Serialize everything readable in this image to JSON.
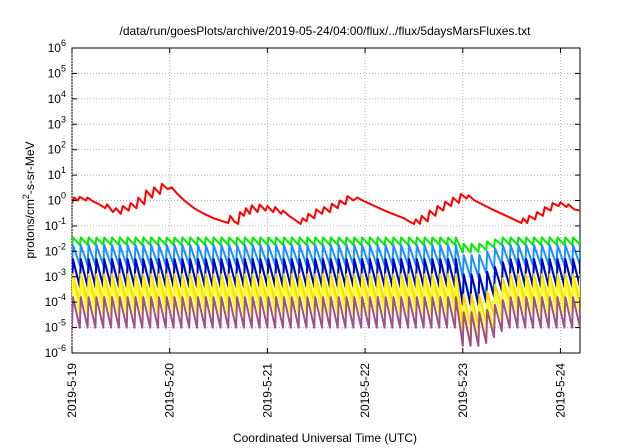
{
  "chart_data": {
    "type": "line",
    "title": "/data/run/goesPlots/archive/2019-05-24/04:00/flux/../flux/5daysMarsFluxes.txt",
    "xlabel": "Coordinated Universal Time (UTC)",
    "ylabel": {
      "base": "protons/cm",
      "sup": "2",
      "rest": "-s-sr-MeV"
    },
    "y_scale": "log",
    "ylim": [
      1e-06,
      1000000.0
    ],
    "y_ticks": [
      {
        "base": "10",
        "exp": "-6",
        "value": 1e-06
      },
      {
        "base": "10",
        "exp": "-5",
        "value": 1e-05
      },
      {
        "base": "10",
        "exp": "-4",
        "value": 0.0001
      },
      {
        "base": "10",
        "exp": "-3",
        "value": 0.001
      },
      {
        "base": "10",
        "exp": "-2",
        "value": 0.01
      },
      {
        "base": "10",
        "exp": "-1",
        "value": 0.1
      },
      {
        "base": "10",
        "exp": "0",
        "value": 1
      },
      {
        "base": "10",
        "exp": "1",
        "value": 10
      },
      {
        "base": "10",
        "exp": "2",
        "value": 100
      },
      {
        "base": "10",
        "exp": "3",
        "value": 1000
      },
      {
        "base": "10",
        "exp": "4",
        "value": 10000
      },
      {
        "base": "10",
        "exp": "5",
        "value": 100000
      },
      {
        "base": "10",
        "exp": "6",
        "value": 1000000
      }
    ],
    "x_range_days": [
      0,
      5.2
    ],
    "x_ticks": [
      {
        "label": "2019-5-19",
        "day": 0
      },
      {
        "label": "2019-5-20",
        "day": 1
      },
      {
        "label": "2019-5-21",
        "day": 2
      },
      {
        "label": "2019-5-22",
        "day": 3
      },
      {
        "label": "2019-5-23",
        "day": 4
      },
      {
        "label": "2019-5-24",
        "day": 5
      }
    ],
    "grid": true,
    "legend": "none",
    "series": [
      {
        "color": "#ff0000",
        "points": [
          [
            0.0,
            0.8
          ],
          [
            0.02,
            1.3
          ],
          [
            0.06,
            1.0
          ],
          [
            0.08,
            1.4
          ],
          [
            0.14,
            1.0
          ],
          [
            0.16,
            1.3
          ],
          [
            0.22,
            0.9
          ],
          [
            0.28,
            0.7
          ],
          [
            0.34,
            0.5
          ],
          [
            0.36,
            0.7
          ],
          [
            0.42,
            0.35
          ],
          [
            0.45,
            0.5
          ],
          [
            0.5,
            0.3
          ],
          [
            0.52,
            0.6
          ],
          [
            0.58,
            0.4
          ],
          [
            0.6,
            0.8
          ],
          [
            0.66,
            0.5
          ],
          [
            0.68,
            1.3
          ],
          [
            0.74,
            0.7
          ],
          [
            0.76,
            2.5
          ],
          [
            0.82,
            1.3
          ],
          [
            0.84,
            3.3
          ],
          [
            0.9,
            1.8
          ],
          [
            0.92,
            4.5
          ],
          [
            0.98,
            2.8
          ],
          [
            1.02,
            3.3
          ],
          [
            1.08,
            1.8
          ],
          [
            1.15,
            1.0
          ],
          [
            1.25,
            0.5
          ],
          [
            1.35,
            0.3
          ],
          [
            1.45,
            0.2
          ],
          [
            1.55,
            0.15
          ],
          [
            1.6,
            0.13
          ],
          [
            1.62,
            0.25
          ],
          [
            1.66,
            0.15
          ],
          [
            1.7,
            0.12
          ],
          [
            1.72,
            0.35
          ],
          [
            1.76,
            0.25
          ],
          [
            1.78,
            0.5
          ],
          [
            1.82,
            0.3
          ],
          [
            1.84,
            0.65
          ],
          [
            1.9,
            0.35
          ],
          [
            1.92,
            0.7
          ],
          [
            1.98,
            0.4
          ],
          [
            2.0,
            0.6
          ],
          [
            2.06,
            0.35
          ],
          [
            2.08,
            0.55
          ],
          [
            2.14,
            0.3
          ],
          [
            2.16,
            0.4
          ],
          [
            2.22,
            0.25
          ],
          [
            2.26,
            0.2
          ],
          [
            2.34,
            0.12
          ],
          [
            2.36,
            0.2
          ],
          [
            2.4,
            0.15
          ],
          [
            2.42,
            0.3
          ],
          [
            2.48,
            0.2
          ],
          [
            2.5,
            0.45
          ],
          [
            2.56,
            0.3
          ],
          [
            2.58,
            0.55
          ],
          [
            2.64,
            0.35
          ],
          [
            2.66,
            0.75
          ],
          [
            2.72,
            0.5
          ],
          [
            2.74,
            1.0
          ],
          [
            2.8,
            0.7
          ],
          [
            2.82,
            1.5
          ],
          [
            2.88,
            1.0
          ],
          [
            2.92,
            1.3
          ],
          [
            3.0,
            0.9
          ],
          [
            3.1,
            0.6
          ],
          [
            3.2,
            0.4
          ],
          [
            3.3,
            0.28
          ],
          [
            3.4,
            0.2
          ],
          [
            3.45,
            0.15
          ],
          [
            3.5,
            0.12
          ],
          [
            3.52,
            0.18
          ],
          [
            3.56,
            0.12
          ],
          [
            3.58,
            0.25
          ],
          [
            3.64,
            0.15
          ],
          [
            3.66,
            0.4
          ],
          [
            3.72,
            0.25
          ],
          [
            3.74,
            0.6
          ],
          [
            3.8,
            0.4
          ],
          [
            3.82,
            0.9
          ],
          [
            3.88,
            0.6
          ],
          [
            3.9,
            1.3
          ],
          [
            3.96,
            0.8
          ],
          [
            3.98,
            1.8
          ],
          [
            4.04,
            1.2
          ],
          [
            4.06,
            1.6
          ],
          [
            4.12,
            1.0
          ],
          [
            4.2,
            0.7
          ],
          [
            4.3,
            0.45
          ],
          [
            4.4,
            0.3
          ],
          [
            4.5,
            0.2
          ],
          [
            4.55,
            0.16
          ],
          [
            4.6,
            0.13
          ],
          [
            4.62,
            0.2
          ],
          [
            4.66,
            0.13
          ],
          [
            4.68,
            0.25
          ],
          [
            4.74,
            0.18
          ],
          [
            4.76,
            0.35
          ],
          [
            4.82,
            0.25
          ],
          [
            4.84,
            0.55
          ],
          [
            4.9,
            0.4
          ],
          [
            4.92,
            0.8
          ],
          [
            4.98,
            0.6
          ],
          [
            5.0,
            0.85
          ],
          [
            5.06,
            0.55
          ],
          [
            5.08,
            0.7
          ],
          [
            5.14,
            0.45
          ],
          [
            5.2,
            0.4
          ]
        ]
      },
      {
        "color": "#00ee00",
        "base_log": -2.0,
        "low_log": -1.75,
        "high_log": -1.45,
        "period": 0.08,
        "dip_from": 4.0,
        "dip_to": 4.15,
        "dip_depth": 0.25
      },
      {
        "color": "#1e90ff",
        "base_log": -2.25,
        "low_log": -2.55,
        "high_log": -1.75,
        "period": 0.08,
        "dip_from": 4.0,
        "dip_to": 4.15,
        "dip_depth": 0.4
      },
      {
        "color": "#00cccc",
        "base_log": -3.0,
        "low_log": -3.3,
        "high_log": -2.45,
        "period": 0.08,
        "dip_from": 4.0,
        "dip_to": 4.2,
        "dip_depth": 0.5
      },
      {
        "color": "#0000cd",
        "base_log": -2.9,
        "low_log": -3.4,
        "high_log": -2.3,
        "period": 0.08,
        "dip_from": 4.0,
        "dip_to": 4.2,
        "dip_depth": 0.6
      },
      {
        "color": "#ffd700",
        "base_log": -3.5,
        "low_log": -4.0,
        "high_log": -2.9,
        "period": 0.08,
        "dip_from": 4.0,
        "dip_to": 4.2,
        "dip_depth": 0.8
      },
      {
        "color": "#ffff00",
        "base_log": -3.9,
        "low_log": -4.5,
        "high_log": -3.1,
        "period": 0.08,
        "dip_from": 4.0,
        "dip_to": 4.2,
        "dip_depth": 1.0
      },
      {
        "color": "#a0508c",
        "base_log": -4.6,
        "low_log": -5.0,
        "high_log": -3.8,
        "period": 0.08,
        "dip_from": 4.0,
        "dip_to": 4.2,
        "dip_depth": 0.6
      }
    ]
  }
}
